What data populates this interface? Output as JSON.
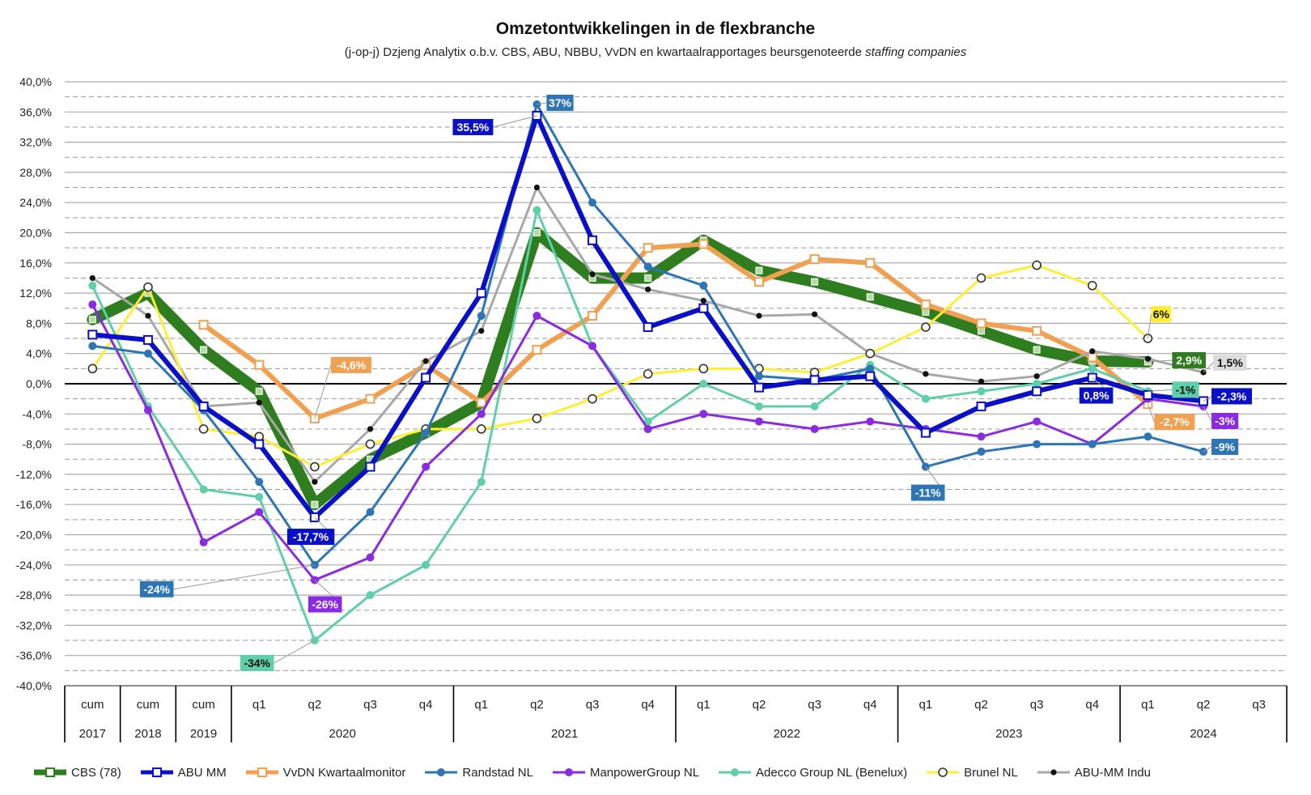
{
  "title": "Omzetontwikkelingen in de flexbranche",
  "subtitle": "(j-op-j) Dzjeng Analytix o.b.v. CBS, ABU, NBBU, VvDN en kwartaalrapportages beursgenoteerde",
  "subtitle_italic": "staffing companies",
  "chart_data": {
    "type": "line",
    "title": "Omzetontwikkelingen in de flexbranche",
    "ylim": [
      -40,
      40
    ],
    "y_ticks": [
      "40,0%",
      "36,0%",
      "32,0%",
      "28,0%",
      "24,0%",
      "20,0%",
      "16,0%",
      "12,0%",
      "8,0%",
      "4,0%",
      "0,0%",
      "-4,0%",
      "-8,0%",
      "-12,0%",
      "-16,0%",
      "-20,0%",
      "-24,0%",
      "-28,0%",
      "-32,0%",
      "-36,0%",
      "-40,0%"
    ],
    "categories": [
      "cum 2017",
      "cum 2018",
      "cum 2019",
      "2020 q1",
      "2020 q2",
      "2020 q3",
      "2020 q4",
      "2021 q1",
      "2021 q2",
      "2021 q3",
      "2021 q4",
      "2022 q1",
      "2022 q2",
      "2022 q3",
      "2022 q4",
      "2023 q1",
      "2023 q2",
      "2023 q3",
      "2023 q4",
      "2024 q1",
      "2024 q2",
      "2024 q3"
    ],
    "x_labels_top": [
      "cum",
      "cum",
      "cum",
      "q1",
      "q2",
      "q3",
      "q4",
      "q1",
      "q2",
      "q3",
      "q4",
      "q1",
      "q2",
      "q3",
      "q4",
      "q1",
      "q2",
      "q3",
      "q4",
      "q1",
      "q2",
      "q3"
    ],
    "x_groups": [
      {
        "label": "2017",
        "count": 1
      },
      {
        "label": "2018",
        "count": 1
      },
      {
        "label": "2019",
        "count": 1
      },
      {
        "label": "2020",
        "count": 4
      },
      {
        "label": "2021",
        "count": 4
      },
      {
        "label": "2022",
        "count": 4
      },
      {
        "label": "2023",
        "count": 4
      },
      {
        "label": "2024",
        "count": 3
      }
    ],
    "grid": true,
    "legend_position": "bottom",
    "series": [
      {
        "name": "CBS (78)",
        "color": "#2e7d1e",
        "style": "band",
        "values": [
          8.5,
          12,
          4.5,
          -1,
          -16,
          -10,
          -6.5,
          -2.5,
          20,
          14,
          14,
          19,
          15,
          13.5,
          11.5,
          9.5,
          7,
          4.5,
          3,
          2.9,
          null,
          null
        ]
      },
      {
        "name": "ABU MM",
        "color": "#0a10c8",
        "style": "thick-square",
        "values": [
          6.5,
          5.8,
          -3,
          -8,
          -17.7,
          -11,
          0.8,
          12,
          35.5,
          19,
          7.5,
          10,
          -0.5,
          0.5,
          1,
          -6.5,
          -3,
          -1,
          0.8,
          -1.5,
          -2.3,
          null
        ]
      },
      {
        "name": "VvDN Kwartaalmonitor",
        "color": "#f0a050",
        "style": "thick-square",
        "values": [
          null,
          null,
          7.8,
          2.5,
          -4.6,
          -2,
          2.5,
          -2.5,
          4.5,
          9,
          18,
          18.5,
          13.5,
          16.5,
          16,
          10.5,
          8,
          7,
          3.5,
          -2.7,
          null,
          null
        ]
      },
      {
        "name": "Randstad NL",
        "color": "#2e75b6",
        "style": "dot",
        "values": [
          5,
          4,
          -3.5,
          -13,
          -24,
          -17,
          -6.5,
          9,
          37,
          24,
          15.5,
          13,
          1,
          0.5,
          2,
          -11,
          -9,
          -8,
          -8,
          -7,
          -9,
          null
        ]
      },
      {
        "name": "ManpowerGroup NL",
        "color": "#8a2be2",
        "style": "dot",
        "values": [
          10.5,
          -3.5,
          -21,
          -17,
          -26,
          -23,
          -11,
          -4,
          9,
          5,
          -6,
          -4,
          -5,
          -6,
          -5,
          -6,
          -7,
          -5,
          -8,
          -2,
          -3,
          null
        ]
      },
      {
        "name": "Adecco Group NL (Benelux)",
        "color": "#5fcfaa",
        "style": "dot",
        "values": [
          13,
          -3,
          -14,
          -15,
          -34,
          -28,
          -24,
          -13,
          23,
          5,
          -5,
          0,
          -3,
          -3,
          2.5,
          -2,
          -1,
          0,
          2,
          -1,
          null,
          null
        ]
      },
      {
        "name": "Brunel NL",
        "color": "#ffee33",
        "style": "circle",
        "values": [
          2,
          12.8,
          -6,
          -7,
          -11,
          -8,
          -6,
          -6,
          -4.6,
          -2,
          1.3,
          2,
          2,
          1.5,
          4,
          7.5,
          14,
          15.7,
          13,
          6,
          null,
          null
        ]
      },
      {
        "name": "ABU-MM Indu",
        "color": "#a8a8a8",
        "style": "black-dot",
        "values": [
          14,
          9,
          -3,
          -2.5,
          -13,
          -6,
          3,
          7,
          26,
          14.5,
          12.5,
          11,
          9,
          9.2,
          4,
          1.3,
          0.3,
          1,
          4.3,
          3.3,
          1.5,
          null
        ]
      }
    ],
    "annotations": [
      {
        "text": "35,5%",
        "series": "ABU MM"
      },
      {
        "text": "37%",
        "series": "Randstad NL"
      },
      {
        "text": "-4,6%",
        "series": "VvDN Kwartaalmonitor"
      },
      {
        "text": "-17,7%",
        "series": "ABU MM"
      },
      {
        "text": "-24%",
        "series": "Randstad NL"
      },
      {
        "text": "-26%",
        "series": "ManpowerGroup NL"
      },
      {
        "text": "-34%",
        "series": "Adecco Group NL (Benelux)"
      },
      {
        "text": "-11%",
        "series": "Randstad NL"
      },
      {
        "text": "6%",
        "series": "Brunel NL"
      },
      {
        "text": "2,9%",
        "series": "CBS (78)"
      },
      {
        "text": "1,5%",
        "series": "ABU-MM Indu"
      },
      {
        "text": "-1%",
        "series": "Adecco Group NL (Benelux)"
      },
      {
        "text": "0,8%",
        "series": "ABU MM"
      },
      {
        "text": "-2,3%",
        "series": "ABU MM"
      },
      {
        "text": "-2,7%",
        "series": "VvDN Kwartaalmonitor"
      },
      {
        "text": "-3%",
        "series": "ManpowerGroup NL"
      },
      {
        "text": "-9%",
        "series": "Randstad NL"
      }
    ]
  }
}
